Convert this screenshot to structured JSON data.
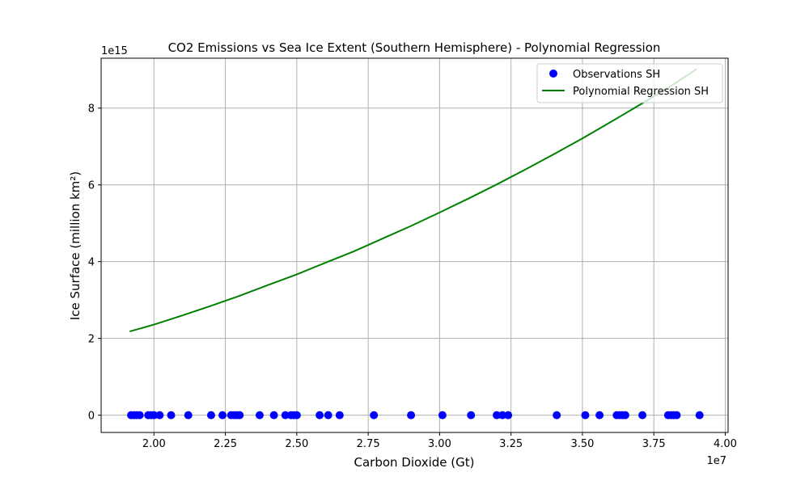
{
  "chart_data": {
    "type": "scatter",
    "title": "CO2 Emissions vs Sea Ice Extent (Southern Hemisphere) - Polynomial Regression",
    "xlabel": "Carbon Dioxide (Gt)",
    "ylabel": "Ice Surface (million km²)",
    "x_offset_label": "1e7",
    "y_offset_label": "1e15",
    "x_scale": 10000000,
    "y_scale": 1000000000000000,
    "xlim": [
      18150000,
      40100000
    ],
    "ylim": [
      -0.45,
      9.3
    ],
    "x_ticks": [
      20000000,
      22500000,
      25000000,
      27500000,
      30000000,
      32500000,
      35000000,
      37500000,
      40000000
    ],
    "x_tick_labels": [
      "2.00",
      "2.25",
      "2.50",
      "2.75",
      "3.00",
      "3.25",
      "3.50",
      "3.75",
      "4.00"
    ],
    "y_ticks": [
      0,
      2,
      4,
      6,
      8
    ],
    "y_tick_labels": [
      "0",
      "2",
      "4",
      "6",
      "8"
    ],
    "grid": true,
    "legend": "top-right",
    "series": [
      {
        "name": "Observations SH",
        "kind": "scatter",
        "color": "#0000ff",
        "x": [
          19200000,
          19300000,
          19400000,
          19500000,
          19800000,
          19900000,
          20000000,
          20200000,
          20600000,
          21200000,
          22000000,
          22400000,
          22700000,
          22800000,
          22900000,
          23000000,
          23700000,
          24200000,
          24600000,
          24800000,
          24900000,
          25000000,
          25800000,
          26100000,
          26500000,
          27700000,
          29000000,
          30100000,
          31100000,
          32000000,
          32200000,
          32400000,
          34100000,
          35100000,
          35600000,
          36200000,
          36300000,
          36400000,
          36500000,
          37100000,
          38000000,
          38100000,
          38200000,
          38300000,
          39100000
        ],
        "y": [
          0,
          0,
          0,
          0,
          0,
          0,
          0,
          0,
          0,
          0,
          0,
          0,
          0,
          0,
          0,
          0,
          0,
          0,
          0,
          0,
          0,
          0,
          0,
          0,
          0,
          0,
          0,
          0,
          0,
          0,
          0,
          0,
          0,
          0,
          0,
          0,
          0,
          0,
          0,
          0,
          0,
          0,
          0,
          0,
          0
        ]
      },
      {
        "name": "Polynomial Regression SH",
        "kind": "line",
        "color": "#008000",
        "x": [
          19150000,
          20000000,
          21000000,
          22000000,
          23000000,
          24000000,
          25000000,
          26000000,
          27000000,
          28000000,
          29000000,
          30000000,
          31000000,
          32000000,
          33000000,
          34000000,
          35000000,
          36000000,
          37000000,
          38000000,
          39000000
        ],
        "y": [
          2.18,
          2.36,
          2.6,
          2.85,
          3.11,
          3.39,
          3.67,
          3.97,
          4.27,
          4.6,
          4.93,
          5.28,
          5.64,
          6.01,
          6.4,
          6.8,
          7.21,
          7.64,
          8.08,
          8.53,
          9.02
        ]
      }
    ]
  }
}
